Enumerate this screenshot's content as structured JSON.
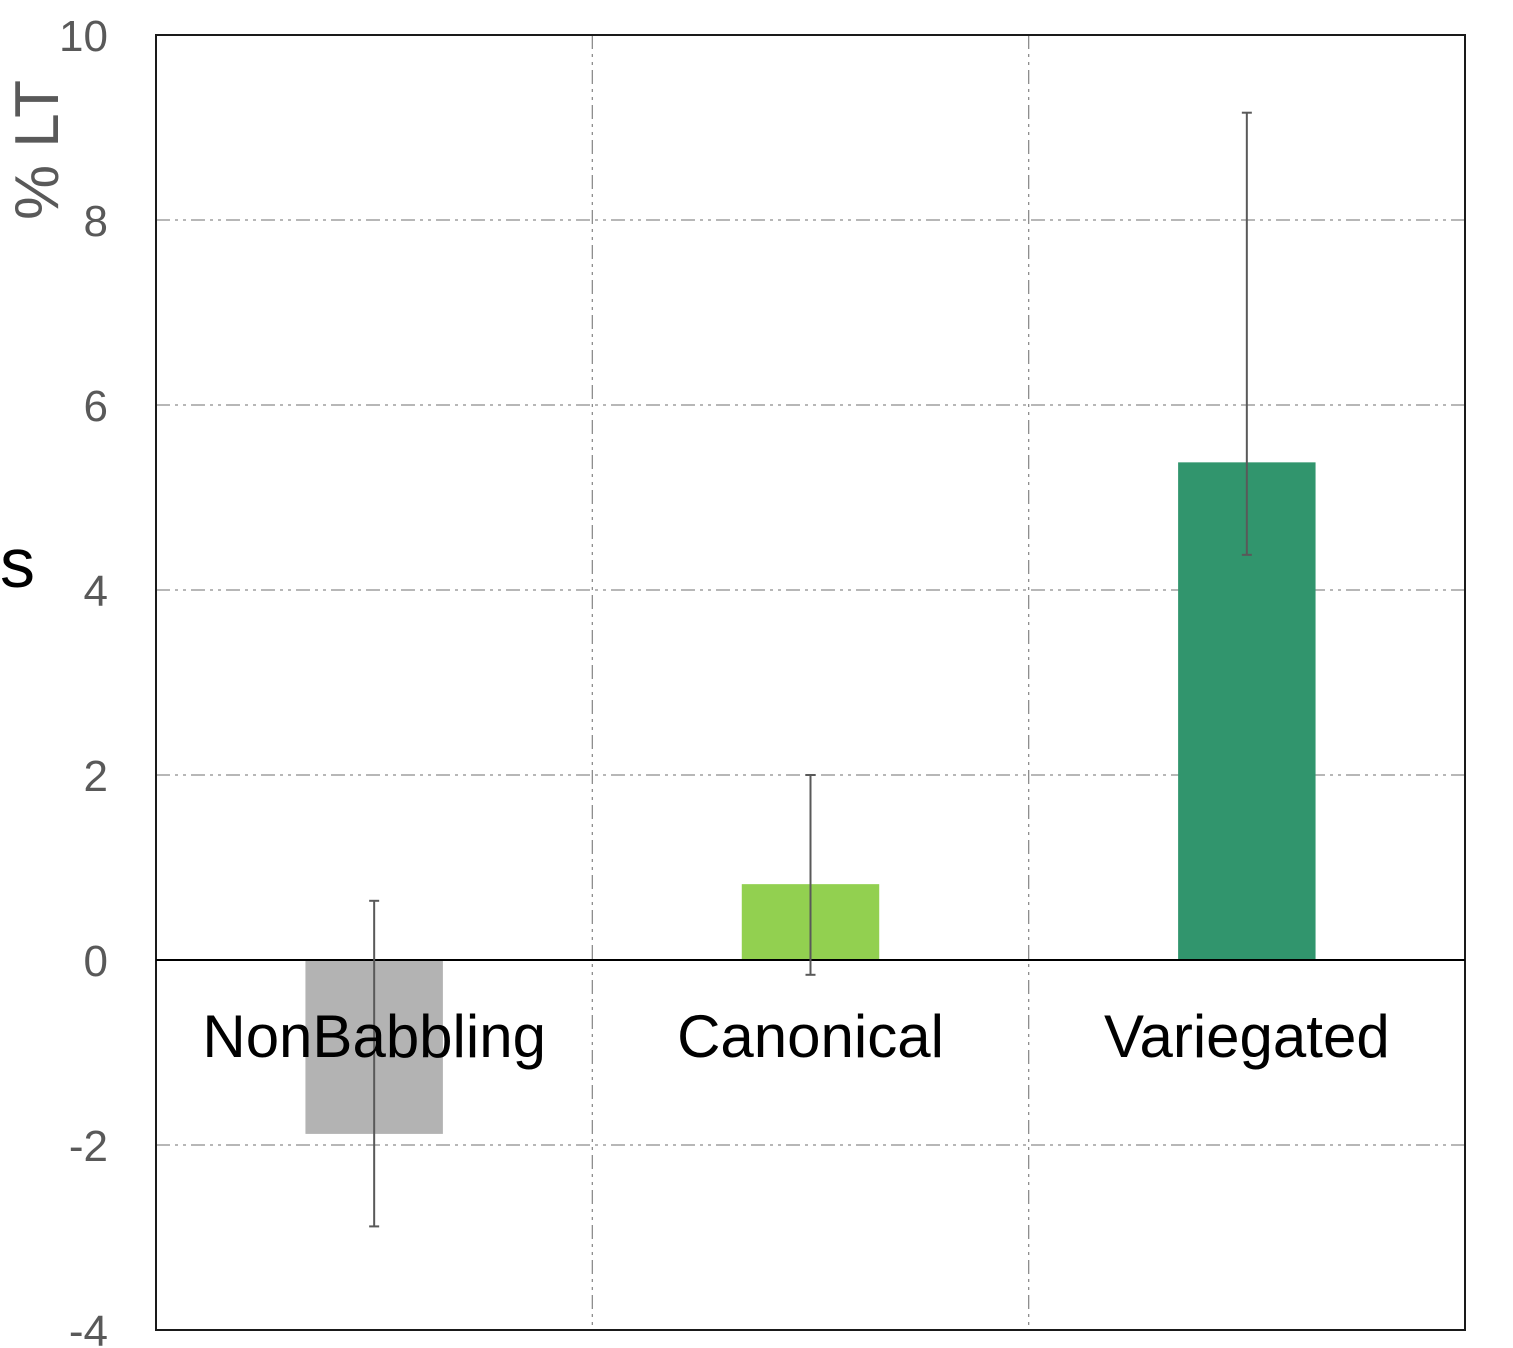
{
  "chart_data": {
    "type": "bar",
    "categories": [
      "NonBabbling",
      "Canonical",
      "Variegated"
    ],
    "values": [
      -1.88,
      0.82,
      5.38
    ],
    "error_low": [
      -2.88,
      -0.16,
      4.38
    ],
    "error_high": [
      0.64,
      2.0,
      9.16
    ],
    "colors": [
      "#b3b3b3",
      "#92d050",
      "#31956d"
    ],
    "title": "",
    "xlabel": "",
    "ylabel": "% LT",
    "ylim": [
      -4,
      10
    ],
    "yticks": [
      -4,
      -2,
      0,
      2,
      4,
      6,
      8,
      10
    ],
    "grid": true,
    "grid_style": "dash-dot",
    "side_text": "s"
  }
}
